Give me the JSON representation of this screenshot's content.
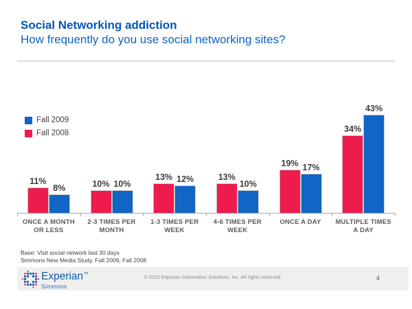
{
  "slide": {
    "title": "Social Networking addiction",
    "subtitle": "How frequently do you use social networking sites?",
    "footnote_line1": "Base: Visit social network last 30 days",
    "footnote_line2": "Simmons New Media Study, Fall 2009, Fall 2008"
  },
  "legend": [
    {
      "label": "Fall 2009",
      "color": "#1165C5"
    },
    {
      "label": "Fall 2008",
      "color": "#EE1C4E"
    }
  ],
  "chart_data": {
    "type": "bar",
    "title": "Social Networking addiction",
    "subtitle": "How frequently do you use social networking sites?",
    "categories": [
      "ONCE A MONTH OR LESS",
      "2-3 TIMES PER MONTH",
      "1-3 TIMES PER WEEK",
      "4-6 TIMES PER WEEK",
      "ONCE A DAY",
      "MULTIPLE TIMES A DAY"
    ],
    "category_lines": [
      [
        "ONCE A MONTH",
        "OR LESS"
      ],
      [
        "2-3 TIMES PER",
        "MONTH"
      ],
      [
        "1-3 TIMES PER",
        "WEEK"
      ],
      [
        "4-6 TIMES PER",
        "WEEK"
      ],
      [
        "ONCE A DAY"
      ],
      [
        "MULTIPLE TIMES",
        "A DAY"
      ]
    ],
    "series": [
      {
        "name": "Fall 2008",
        "color": "#EE1C4E",
        "position": "left",
        "values": [
          11,
          10,
          13,
          13,
          19,
          34
        ]
      },
      {
        "name": "Fall 2009",
        "color": "#1165C5",
        "position": "right",
        "values": [
          8,
          10,
          12,
          10,
          17,
          43
        ]
      }
    ],
    "value_suffix": "%",
    "data_labels": true,
    "xlabel": "",
    "ylabel": "",
    "ylim": [
      0,
      45
    ],
    "grid": false,
    "legend_position": "upper-left"
  },
  "footer": {
    "brand_name": "Experian",
    "brand_tm": "™",
    "brand_sub": "Simmons",
    "copyright": "© 2010 Experian Information Solutions, Inc.  All rights reserved.",
    "page_number": "4"
  },
  "colors": {
    "title_blue": "#0056B5",
    "bar_red": "#EE1C4E",
    "bar_blue": "#1165C5",
    "bar_border": "#C9C9C9",
    "axis": "#A8A8A8",
    "footer_bar_bg": "#EFEFEE",
    "logo_dot_blue": "#1B5FAA",
    "logo_dot_red": "#E8174A"
  }
}
